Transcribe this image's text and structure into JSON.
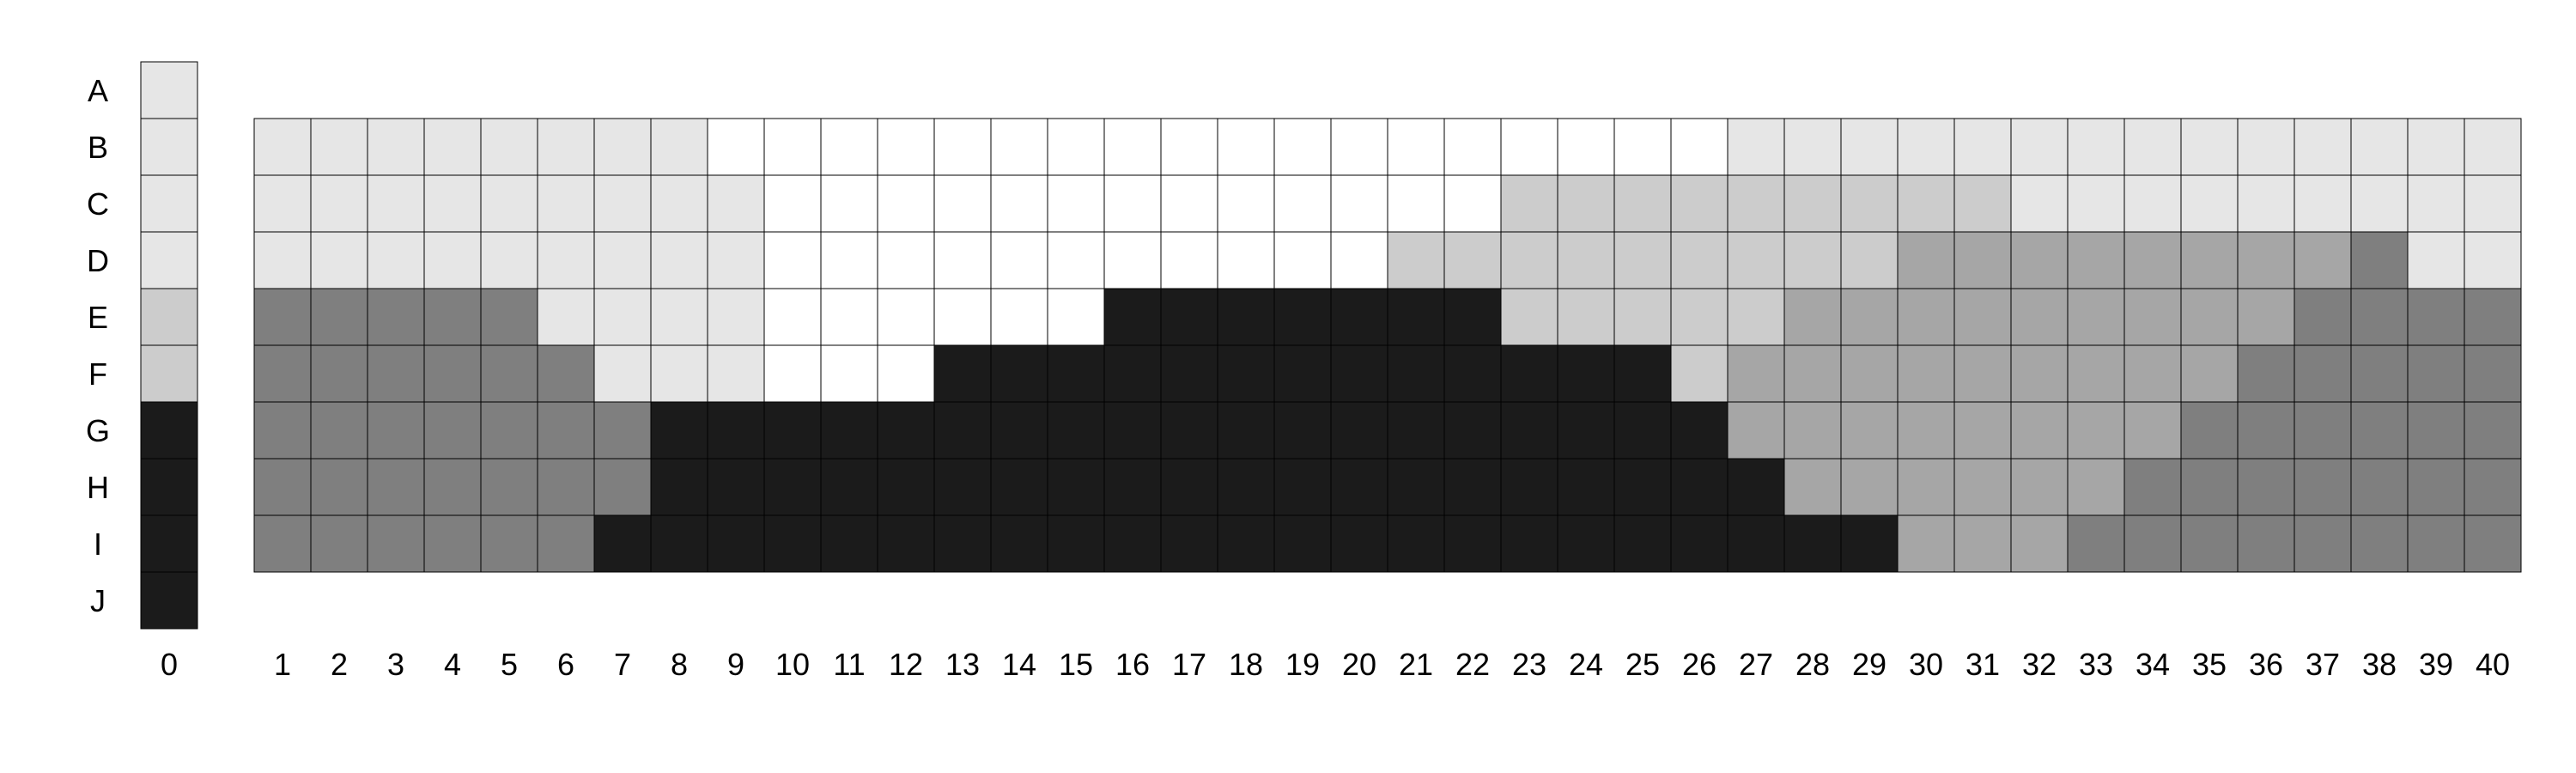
{
  "chart_data": {
    "type": "heatmap",
    "row_labels": [
      "A",
      "B",
      "C",
      "D",
      "E",
      "F",
      "G",
      "H",
      "I",
      "J"
    ],
    "column_labels": [
      "0",
      "1",
      "2",
      "3",
      "4",
      "5",
      "6",
      "7",
      "8",
      "9",
      "10",
      "11",
      "12",
      "13",
      "14",
      "15",
      "16",
      "17",
      "18",
      "19",
      "20",
      "21",
      "22",
      "23",
      "24",
      "25",
      "26",
      "27",
      "28",
      "29",
      "30",
      "31",
      "32",
      "33",
      "34",
      "35",
      "36",
      "37",
      "38",
      "39",
      "40"
    ],
    "level_colors": [
      "#ffffff",
      "#e6e6e6",
      "#cccccc",
      "#a6a6a6",
      "#7f7f7f",
      "#1b1b1b"
    ],
    "grid_color": "#000000",
    "reference_column": {
      "label": "0",
      "rows": [
        "A",
        "B",
        "C",
        "D",
        "E",
        "F",
        "G",
        "H",
        "I",
        "J"
      ],
      "levels": [
        1,
        1,
        1,
        1,
        2,
        2,
        5,
        5,
        5,
        5
      ]
    },
    "main_grid": {
      "rows": [
        "B",
        "C",
        "D",
        "E",
        "F",
        "G",
        "H",
        "I"
      ],
      "columns": [
        "1",
        "2",
        "3",
        "4",
        "5",
        "6",
        "7",
        "8",
        "9",
        "10",
        "11",
        "12",
        "13",
        "14",
        "15",
        "16",
        "17",
        "18",
        "19",
        "20",
        "21",
        "22",
        "23",
        "24",
        "25",
        "26",
        "27",
        "28",
        "29",
        "30",
        "31",
        "32",
        "33",
        "34",
        "35",
        "36",
        "37",
        "38",
        "39",
        "40"
      ],
      "levels": [
        [
          1,
          1,
          1,
          1,
          1,
          1,
          1,
          1,
          0,
          0,
          0,
          0,
          0,
          0,
          0,
          0,
          0,
          0,
          0,
          0,
          0,
          0,
          0,
          0,
          0,
          0,
          1,
          1,
          1,
          1,
          1,
          1,
          1,
          1,
          1,
          1,
          1,
          1,
          1,
          1
        ],
        [
          1,
          1,
          1,
          1,
          1,
          1,
          1,
          1,
          1,
          0,
          0,
          0,
          0,
          0,
          0,
          0,
          0,
          0,
          0,
          0,
          0,
          0,
          2,
          2,
          2,
          2,
          2,
          2,
          2,
          2,
          2,
          1,
          1,
          1,
          1,
          1,
          1,
          1,
          1,
          1
        ],
        [
          1,
          1,
          1,
          1,
          1,
          1,
          1,
          1,
          1,
          0,
          0,
          0,
          0,
          0,
          0,
          0,
          0,
          0,
          0,
          0,
          2,
          2,
          2,
          2,
          2,
          2,
          2,
          2,
          2,
          3,
          3,
          3,
          3,
          3,
          3,
          3,
          3,
          4,
          1,
          1
        ],
        [
          4,
          4,
          4,
          4,
          4,
          1,
          1,
          1,
          1,
          0,
          0,
          0,
          0,
          0,
          0,
          5,
          5,
          5,
          5,
          5,
          5,
          5,
          2,
          2,
          2,
          2,
          2,
          3,
          3,
          3,
          3,
          3,
          3,
          3,
          3,
          3,
          4,
          4,
          4,
          4
        ],
        [
          4,
          4,
          4,
          4,
          4,
          4,
          1,
          1,
          1,
          0,
          0,
          0,
          5,
          5,
          5,
          5,
          5,
          5,
          5,
          5,
          5,
          5,
          5,
          5,
          5,
          2,
          3,
          3,
          3,
          3,
          3,
          3,
          3,
          3,
          3,
          4,
          4,
          4,
          4,
          4
        ],
        [
          4,
          4,
          4,
          4,
          4,
          4,
          4,
          5,
          5,
          5,
          5,
          5,
          5,
          5,
          5,
          5,
          5,
          5,
          5,
          5,
          5,
          5,
          5,
          5,
          5,
          5,
          3,
          3,
          3,
          3,
          3,
          3,
          3,
          3,
          4,
          4,
          4,
          4,
          4,
          4
        ],
        [
          4,
          4,
          4,
          4,
          4,
          4,
          4,
          5,
          5,
          5,
          5,
          5,
          5,
          5,
          5,
          5,
          5,
          5,
          5,
          5,
          5,
          5,
          5,
          5,
          5,
          5,
          5,
          3,
          3,
          3,
          3,
          3,
          3,
          4,
          4,
          4,
          4,
          4,
          4,
          4
        ],
        [
          4,
          4,
          4,
          4,
          4,
          4,
          5,
          5,
          5,
          5,
          5,
          5,
          5,
          5,
          5,
          5,
          5,
          5,
          5,
          5,
          5,
          5,
          5,
          5,
          5,
          5,
          5,
          5,
          5,
          3,
          3,
          3,
          4,
          4,
          4,
          4,
          4,
          4,
          4,
          4
        ]
      ]
    }
  }
}
